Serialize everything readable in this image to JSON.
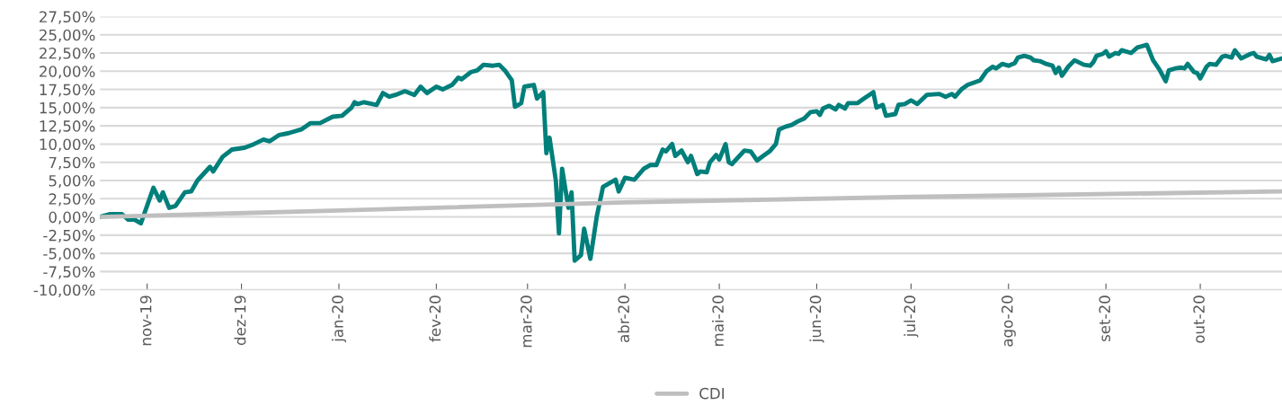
{
  "chart_data": {
    "type": "line",
    "xlim": [
      "2019-10-17",
      "2020-10-27"
    ],
    "ylim": [
      -10,
      27.5
    ],
    "yticks": [
      {
        "value": -10,
        "label": "-10,00%"
      },
      {
        "value": -7.5,
        "label": "-7,50%"
      },
      {
        "value": -5,
        "label": "-5,00%"
      },
      {
        "value": -2.5,
        "label": "-2,50%"
      },
      {
        "value": 0,
        "label": "0,00%"
      },
      {
        "value": 2.5,
        "label": "2,50%"
      },
      {
        "value": 5,
        "label": "5,00%"
      },
      {
        "value": 7.5,
        "label": "7,50%"
      },
      {
        "value": 10,
        "label": "10,00%"
      },
      {
        "value": 12.5,
        "label": "12,50%"
      },
      {
        "value": 15,
        "label": "15,00%"
      },
      {
        "value": 17.5,
        "label": "17,50%"
      },
      {
        "value": 20,
        "label": "20,00%"
      },
      {
        "value": 22.5,
        "label": "22,50%"
      },
      {
        "value": 25,
        "label": "25,00%"
      },
      {
        "value": 27.5,
        "label": "27,50%"
      }
    ],
    "xticks": [
      {
        "value": "2019-11-01",
        "label": "nov-19"
      },
      {
        "value": "2019-12-01",
        "label": "dez-19"
      },
      {
        "value": "2020-01-01",
        "label": "jan-20"
      },
      {
        "value": "2020-02-01",
        "label": "fev-20"
      },
      {
        "value": "2020-03-01",
        "label": "mar-20"
      },
      {
        "value": "2020-04-01",
        "label": "abr-20"
      },
      {
        "value": "2020-05-01",
        "label": "mai-20"
      },
      {
        "value": "2020-06-01",
        "label": "jun-20"
      },
      {
        "value": "2020-07-01",
        "label": "jul-20"
      },
      {
        "value": "2020-08-01",
        "label": "ago-20"
      },
      {
        "value": "2020-09-01",
        "label": "set-20"
      },
      {
        "value": "2020-10-01",
        "label": "out-20"
      }
    ],
    "grid": "y",
    "legend": "bottom",
    "series": [
      {
        "color": "#007f7b",
        "x": [
          "2019-10-17",
          "2019-10-20",
          "2019-10-24",
          "2019-10-26",
          "2019-10-28",
          "2019-10-30",
          "2019-11-03",
          "2019-11-05",
          "2019-11-06",
          "2019-11-08",
          "2019-11-10",
          "2019-11-13",
          "2019-11-15",
          "2019-11-17",
          "2019-11-21",
          "2019-11-22",
          "2019-11-25",
          "2019-11-28",
          "2019-12-02",
          "2019-12-05",
          "2019-12-08",
          "2019-12-10",
          "2019-12-13",
          "2019-12-16",
          "2019-12-20",
          "2019-12-23",
          "2019-12-26",
          "2019-12-30",
          "2020-01-02",
          "2020-01-05",
          "2020-01-06",
          "2020-01-07",
          "2020-01-09",
          "2020-01-13",
          "2020-01-15",
          "2020-01-17",
          "2020-01-19",
          "2020-01-22",
          "2020-01-25",
          "2020-01-27",
          "2020-01-29",
          "2020-02-01",
          "2020-02-03",
          "2020-02-06",
          "2020-02-08",
          "2020-02-09",
          "2020-02-12",
          "2020-02-14",
          "2020-02-16",
          "2020-02-19",
          "2020-02-21",
          "2020-02-23",
          "2020-02-25",
          "2020-02-26",
          "2020-02-28",
          "2020-02-29",
          "2020-03-03",
          "2020-03-04",
          "2020-03-06",
          "2020-03-07",
          "2020-03-08",
          "2020-03-10",
          "2020-03-11",
          "2020-03-12",
          "2020-03-14",
          "2020-03-15",
          "2020-03-16",
          "2020-03-18",
          "2020-03-19",
          "2020-03-21",
          "2020-03-23",
          "2020-03-25",
          "2020-03-27",
          "2020-03-29",
          "2020-03-30",
          "2020-04-01",
          "2020-04-04",
          "2020-04-07",
          "2020-04-09",
          "2020-04-11",
          "2020-04-13",
          "2020-04-14",
          "2020-04-16",
          "2020-04-17",
          "2020-04-19",
          "2020-04-21",
          "2020-04-22",
          "2020-04-24",
          "2020-04-25",
          "2020-04-27",
          "2020-04-28",
          "2020-04-30",
          "2020-05-01",
          "2020-05-03",
          "2020-05-04",
          "2020-05-05",
          "2020-05-09",
          "2020-05-11",
          "2020-05-13",
          "2020-05-15",
          "2020-05-17",
          "2020-05-19",
          "2020-05-20",
          "2020-05-22",
          "2020-05-24",
          "2020-05-26",
          "2020-05-28",
          "2020-05-30",
          "2020-06-01",
          "2020-06-02",
          "2020-06-03",
          "2020-06-05",
          "2020-06-07",
          "2020-06-08",
          "2020-06-10",
          "2020-06-11",
          "2020-06-14",
          "2020-06-16",
          "2020-06-19",
          "2020-06-20",
          "2020-06-22",
          "2020-06-23",
          "2020-06-26",
          "2020-06-27",
          "2020-06-29",
          "2020-07-01",
          "2020-07-03",
          "2020-07-06",
          "2020-07-10",
          "2020-07-12",
          "2020-07-14",
          "2020-07-15",
          "2020-07-17",
          "2020-07-19",
          "2020-07-23",
          "2020-07-25",
          "2020-07-27",
          "2020-07-28",
          "2020-07-30",
          "2020-08-01",
          "2020-08-03",
          "2020-08-04",
          "2020-08-06",
          "2020-08-08",
          "2020-08-09",
          "2020-08-11",
          "2020-08-13",
          "2020-08-15",
          "2020-08-16",
          "2020-08-17",
          "2020-08-18",
          "2020-08-20",
          "2020-08-22",
          "2020-08-25",
          "2020-08-27",
          "2020-08-28",
          "2020-08-29",
          "2020-08-31",
          "2020-09-01",
          "2020-09-02",
          "2020-09-04",
          "2020-09-05",
          "2020-09-06",
          "2020-09-09",
          "2020-09-11",
          "2020-09-14",
          "2020-09-16",
          "2020-09-18",
          "2020-09-20",
          "2020-09-21",
          "2020-09-23",
          "2020-09-25",
          "2020-09-26",
          "2020-09-27",
          "2020-09-29",
          "2020-09-30",
          "2020-10-01",
          "2020-10-03",
          "2020-10-04",
          "2020-10-06",
          "2020-10-08",
          "2020-10-09",
          "2020-10-11",
          "2020-10-12",
          "2020-10-14",
          "2020-10-17",
          "2020-10-18",
          "2020-10-19",
          "2020-10-22",
          "2020-10-23",
          "2020-10-24",
          "2020-10-27"
        ],
        "values": [
          0.0,
          0.38,
          0.38,
          -0.38,
          -0.38,
          -0.88,
          4.0,
          2.25,
          3.38,
          1.25,
          1.5,
          3.38,
          3.5,
          5.0,
          6.88,
          6.25,
          8.25,
          9.25,
          9.5,
          10.0,
          10.62,
          10.38,
          11.25,
          11.5,
          12.0,
          12.88,
          12.88,
          13.75,
          13.88,
          15.0,
          15.75,
          15.5,
          15.75,
          15.38,
          17.0,
          16.5,
          16.75,
          17.25,
          16.75,
          17.88,
          17.0,
          17.88,
          17.5,
          18.12,
          19.12,
          18.88,
          19.88,
          20.12,
          20.88,
          20.75,
          20.88,
          20.0,
          18.75,
          15.12,
          15.62,
          17.88,
          18.12,
          16.25,
          17.12,
          8.75,
          10.88,
          5.0,
          -2.25,
          6.62,
          1.25,
          3.38,
          -6.0,
          -5.25,
          -1.62,
          -5.75,
          0.0,
          4.12,
          4.62,
          5.12,
          3.5,
          5.38,
          5.12,
          6.62,
          7.12,
          7.12,
          9.25,
          9.0,
          10.0,
          8.38,
          9.12,
          7.5,
          8.38,
          5.88,
          6.25,
          6.12,
          7.5,
          8.5,
          7.88,
          10.0,
          7.5,
          7.25,
          9.12,
          9.0,
          7.75,
          8.38,
          9.0,
          10.0,
          12.0,
          12.38,
          12.62,
          13.12,
          13.5,
          14.38,
          14.5,
          14.0,
          14.88,
          15.25,
          14.75,
          15.38,
          14.88,
          15.62,
          15.62,
          16.25,
          17.12,
          15.0,
          15.38,
          13.88,
          14.12,
          15.38,
          15.5,
          16.0,
          15.5,
          16.75,
          16.88,
          16.5,
          16.88,
          16.5,
          17.5,
          18.12,
          18.75,
          20.0,
          20.62,
          20.38,
          21.0,
          20.75,
          21.12,
          21.88,
          22.12,
          21.88,
          21.5,
          21.38,
          21.0,
          20.75,
          19.75,
          20.5,
          19.38,
          20.62,
          21.5,
          20.88,
          20.75,
          21.25,
          22.12,
          22.38,
          22.75,
          22.0,
          22.5,
          22.38,
          22.88,
          22.5,
          23.25,
          23.62,
          21.5,
          20.25,
          18.62,
          20.12,
          20.38,
          20.5,
          20.38,
          21.0,
          19.88,
          19.75,
          19.0,
          20.62,
          21.0,
          20.88,
          22.0,
          22.12,
          21.88,
          22.88,
          21.75,
          22.38,
          22.5,
          22.0,
          21.62,
          22.25,
          21.38,
          21.75
        ]
      },
      {
        "name": "CDI",
        "color": "#bfbfbf",
        "x": [
          "2019-10-17",
          "2020-01-01",
          "2020-04-01",
          "2020-07-01",
          "2020-10-27"
        ],
        "values": [
          0.0,
          0.88,
          2.0,
          2.75,
          3.5
        ]
      }
    ]
  }
}
